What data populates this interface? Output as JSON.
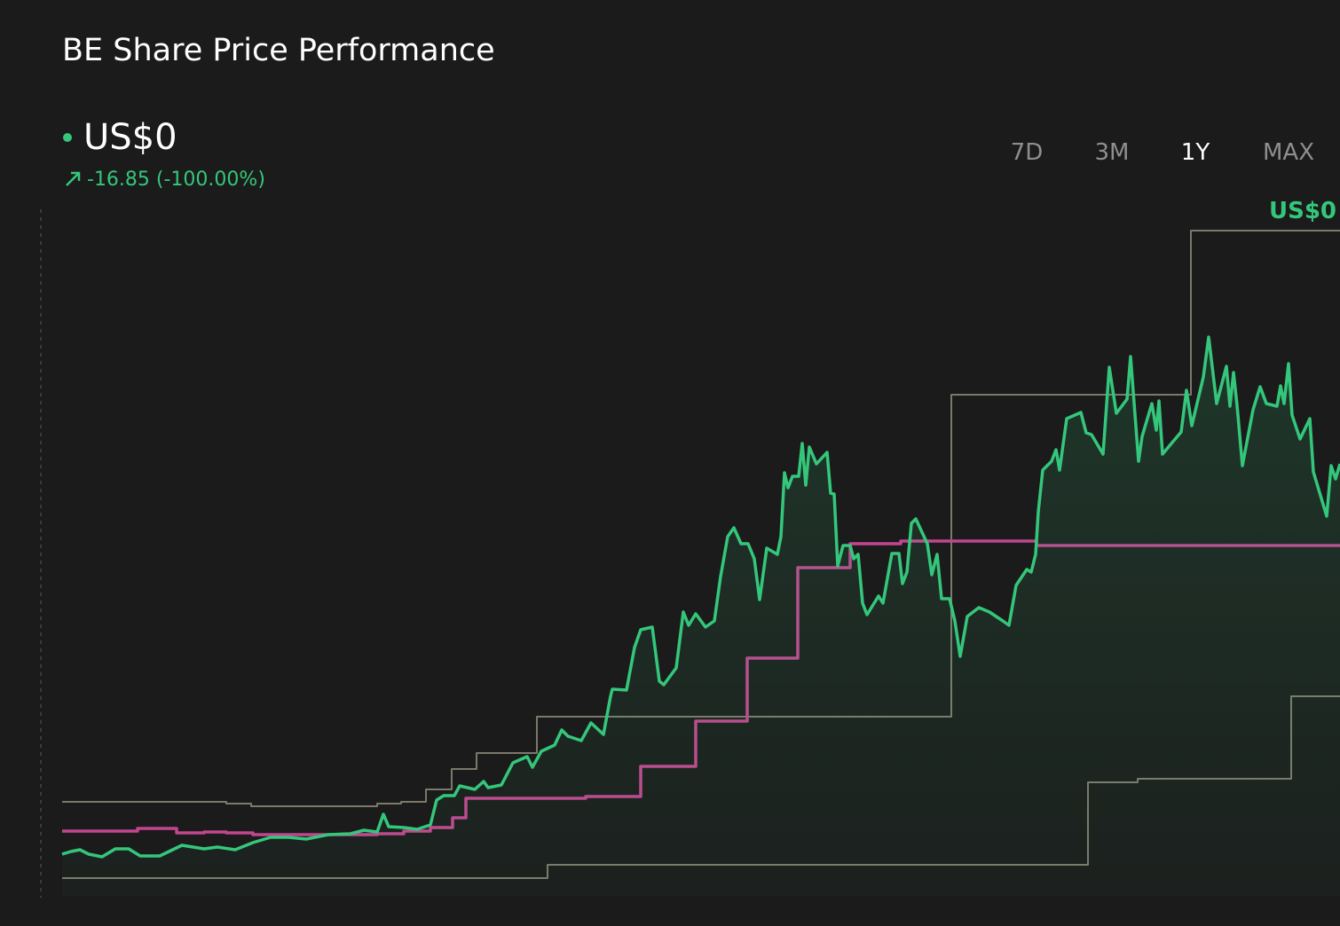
{
  "chart_data": {
    "type": "line",
    "title": "BE Share Price Performance",
    "price": "US$0",
    "change": "-16.85 (-100.00%)",
    "range_buttons": [
      "7D",
      "3M",
      "1Y",
      "MAX"
    ],
    "selected_range": "1Y",
    "annotation": "US$0",
    "xlim": [
      0,
      1440
    ],
    "ylim": [
      0,
      775
    ],
    "grid": false,
    "series": [
      {
        "color": "#34c77b",
        "step": false,
        "fill": true,
        "x": [
          0,
          10,
          20,
          30,
          45,
          60,
          75,
          88,
          110,
          135,
          160,
          175,
          195,
          215,
          235,
          255,
          275,
          300,
          325,
          340,
          355,
          362,
          368,
          385,
          400,
          415,
          422,
          430,
          442,
          448,
          465,
          475,
          480,
          495,
          508,
          524,
          530,
          540,
          555,
          563,
          570,
          585,
          596,
          610,
          618,
          620,
          636,
          645,
          652,
          665,
          673,
          678,
          692,
          700,
          706,
          714,
          725,
          735,
          742,
          750,
          757,
          765,
          773,
          780,
          786,
          794,
          806,
          810,
          814,
          818,
          823,
          830,
          834,
          838,
          842,
          850,
          862,
          866,
          870,
          874,
          880,
          888,
          892,
          897,
          902,
          907,
          920,
          925,
          935,
          943,
          947,
          952,
          957,
          962,
          975,
          980,
          986,
          991,
          1000,
          1006,
          1012,
          1020,
          1033,
          1045,
          1060,
          1067,
          1075,
          1087,
          1092,
          1097,
          1100,
          1105,
          1115,
          1120,
          1124,
          1132,
          1148,
          1154,
          1160,
          1173,
          1180,
          1188,
          1200,
          1204,
          1213,
          1217,
          1228,
          1233,
          1236,
          1240,
          1250,
          1261,
          1267,
          1273,
          1286,
          1292,
          1301,
          1312,
          1316,
          1320,
          1324,
          1330,
          1342,
          1350,
          1357,
          1369,
          1373,
          1377,
          1382,
          1386,
          1395,
          1406,
          1410,
          1425,
          1430,
          1435,
          1440
        ],
        "values": [
          47,
          50,
          52,
          47,
          44,
          53,
          53,
          45,
          45,
          57,
          53,
          55,
          52,
          60,
          66,
          66,
          64,
          69,
          70,
          74,
          72,
          92,
          78,
          77,
          75,
          80,
          108,
          113,
          113,
          124,
          120,
          129,
          122,
          125,
          150,
          157,
          145,
          163,
          170,
          187,
          180,
          175,
          195,
          182,
          225,
          233,
          232,
          280,
          300,
          303,
          242,
          238,
          257,
          320,
          305,
          318,
          303,
          310,
          360,
          405,
          415,
          397,
          397,
          380,
          334,
          392,
          385,
          405,
          477,
          460,
          473,
          473,
          510,
          463,
          506,
          487,
          500,
          454,
          453,
          372,
          395,
          395,
          380,
          385,
          330,
          317,
          338,
          330,
          386,
          386,
          352,
          365,
          420,
          425,
          397,
          362,
          385,
          335,
          335,
          310,
          270,
          315,
          325,
          320,
          310,
          305,
          350,
          368,
          365,
          385,
          433,
          480,
          490,
          503,
          480,
          538,
          545,
          522,
          520,
          498,
          596,
          544,
          560,
          608,
          490,
          518,
          555,
          525,
          558,
          498,
          510,
          523,
          570,
          530,
          585,
          630,
          555,
          597,
          552,
          590,
          553,
          485,
          548,
          574,
          555,
          552,
          575,
          555,
          600,
          542,
          515,
          538,
          478,
          428,
          485,
          470,
          487
        ]
      },
      {
        "color": "#c2468f",
        "step": true,
        "fill": false,
        "x": [
          0,
          85,
          129,
          160,
          185,
          215,
          355,
          385,
          415,
          440,
          455,
          590,
          652,
          714,
          772,
          829,
          888,
          945,
          1098,
          1440
        ],
        "values": [
          73,
          76,
          71,
          72,
          71,
          69,
          70,
          73,
          77,
          88,
          110,
          112,
          146,
          197,
          268,
          370,
          397,
          400,
          395,
          395
        ]
      },
      {
        "color": "#7b796b",
        "step": true,
        "fill": false,
        "x": [
          0,
          185,
          213,
          355,
          382,
          410,
          439,
          467,
          535,
          1002,
          1272,
          1440
        ],
        "values": [
          106,
          104,
          101,
          104,
          106,
          120,
          143,
          161,
          202,
          565,
          750,
          750
        ]
      },
      {
        "color": "#7b796b",
        "step": true,
        "fill": false,
        "x": [
          0,
          547,
          1156,
          1212,
          1385,
          1440
        ],
        "values": [
          20,
          35,
          128,
          132,
          225,
          225
        ]
      }
    ]
  }
}
